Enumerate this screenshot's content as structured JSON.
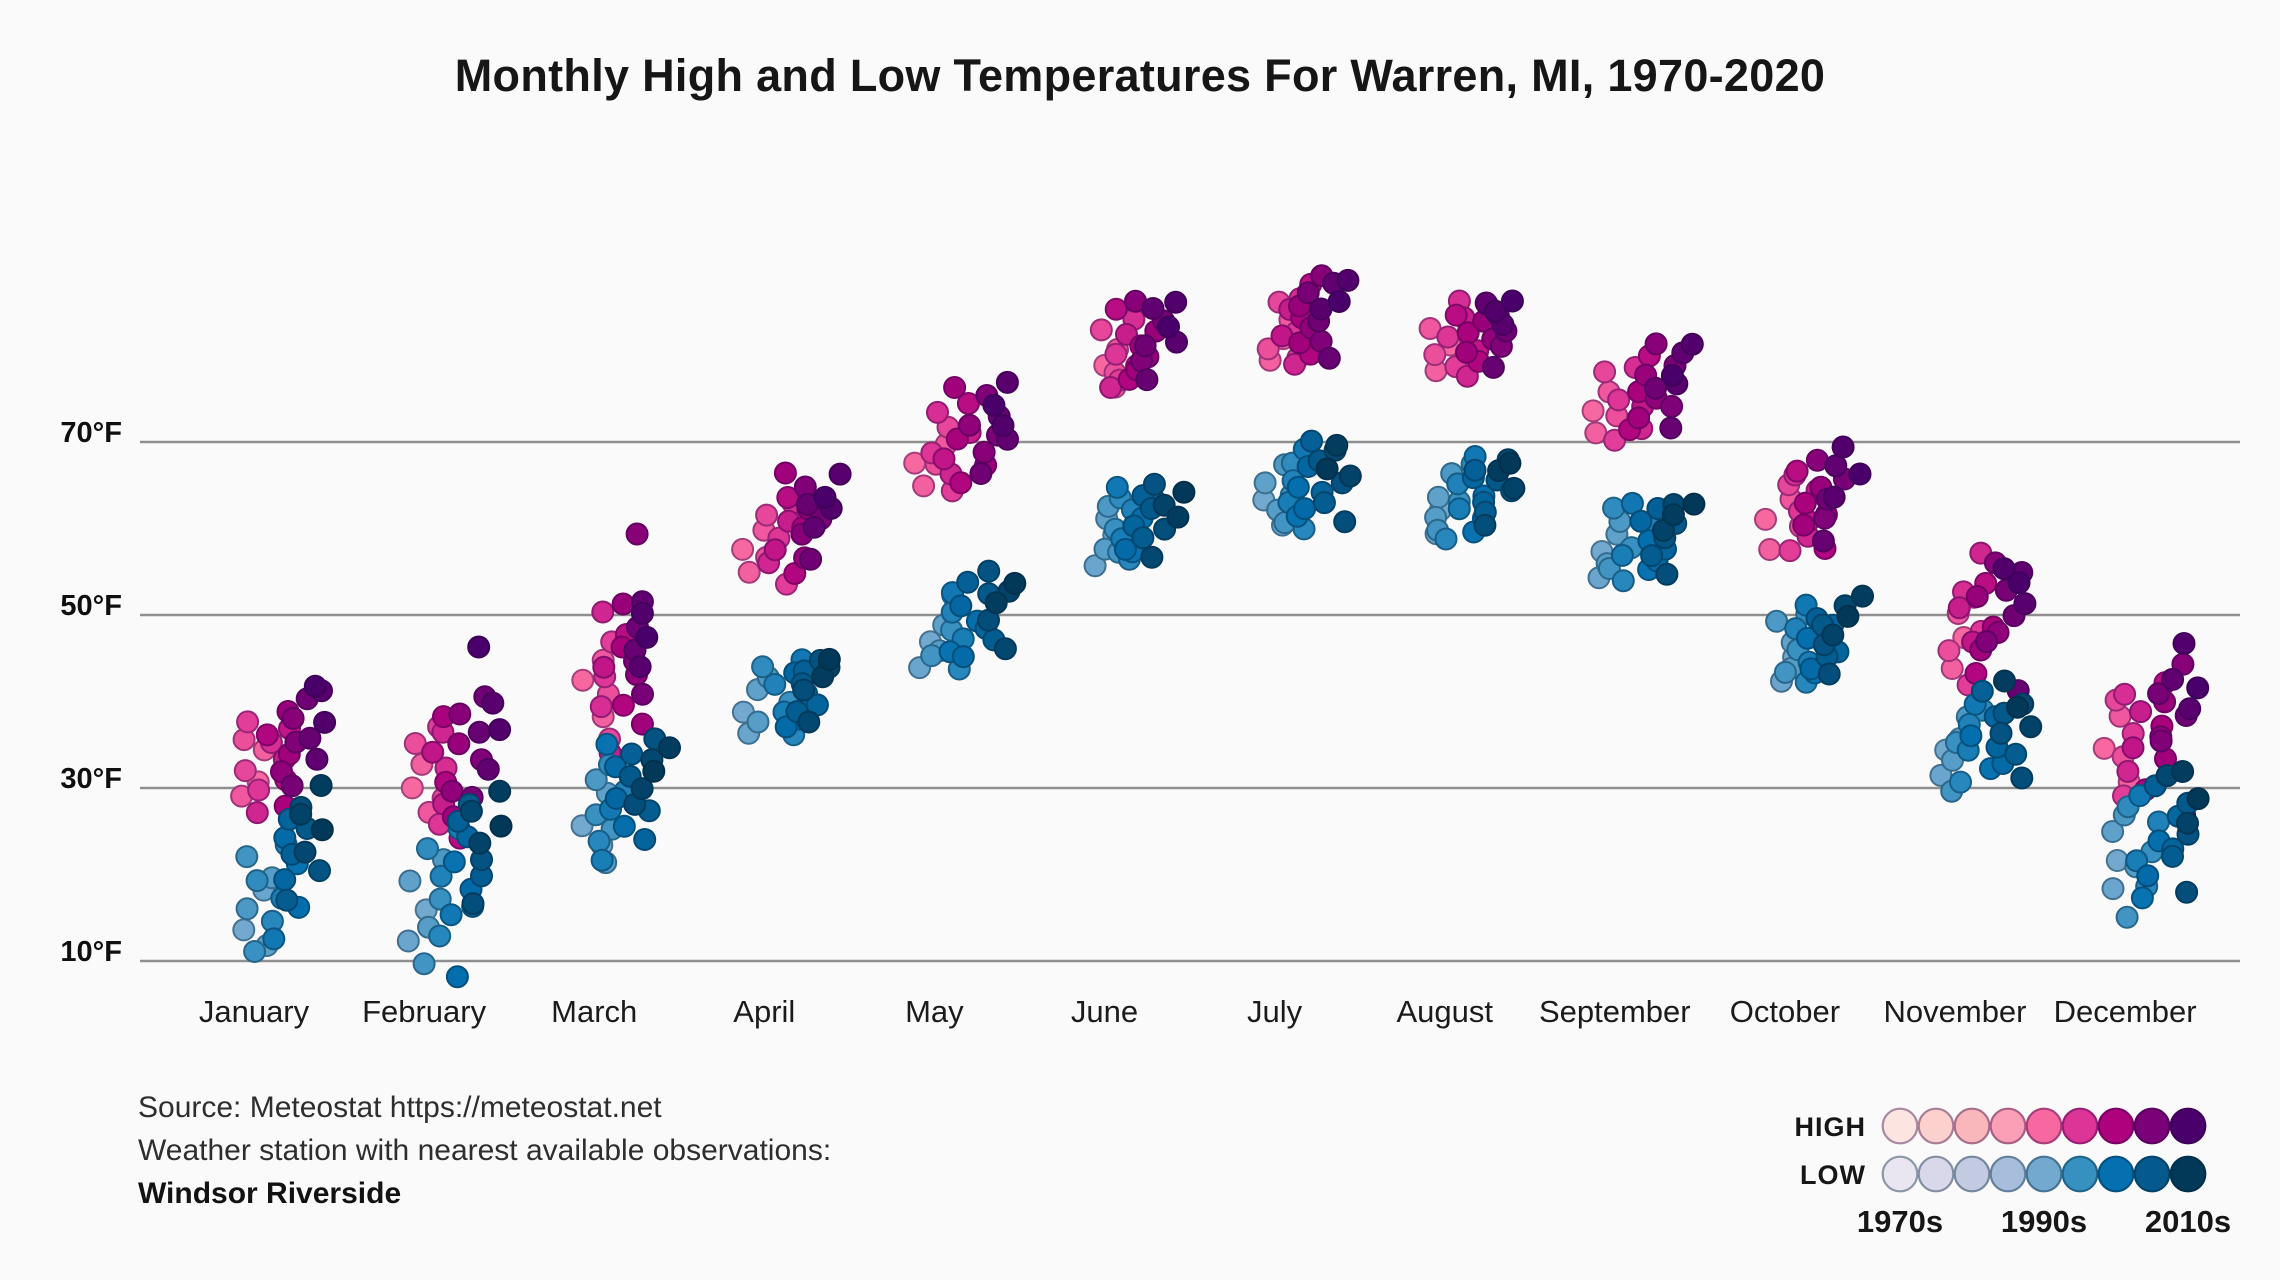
{
  "title": "Monthly High and Low Temperatures For Warren, MI, 1970-2020",
  "source": {
    "line1": "Source: Meteostat https://meteostat.net",
    "line2": "Weather station with nearest available observations:",
    "line3": "Windsor Riverside"
  },
  "legend": {
    "high_label": "HIGH",
    "low_label": "LOW",
    "decade_labels": [
      "1970s",
      "1990s",
      "2010s"
    ],
    "swatch_count": 9
  },
  "colors": {
    "background": "#fbfafb",
    "grid": "#8f8f8f",
    "text": "#1b1b1b",
    "high_palette": [
      "#fce5e1",
      "#fbd0cd",
      "#fab7bb",
      "#fa9fb5",
      "#f768a1",
      "#dd3497",
      "#ae017e",
      "#7a0177",
      "#49006a"
    ],
    "low_palette": [
      "#e9e6f2",
      "#d9d8ea",
      "#c3cbe2",
      "#a6bddb",
      "#74a9cf",
      "#3690c0",
      "#0570b0",
      "#045a8d",
      "#023858"
    ]
  },
  "y_axis": {
    "tick_labels": [
      "70°F",
      "50°F",
      "30°F",
      "10°F"
    ],
    "tick_values": [
      70,
      50,
      30,
      10
    ]
  },
  "months": [
    "January",
    "February",
    "March",
    "April",
    "May",
    "June",
    "July",
    "August",
    "September",
    "October",
    "November",
    "December"
  ],
  "chart_data": {
    "type": "scatter",
    "title": "Monthly High and Low Temperatures For Warren, MI, 1970-2020",
    "x_categories": [
      "January",
      "February",
      "March",
      "April",
      "May",
      "June",
      "July",
      "August",
      "September",
      "October",
      "November",
      "December"
    ],
    "y_unit": "°F",
    "y_ticks": [
      10,
      30,
      50,
      70
    ],
    "ylim": [
      2,
      95
    ],
    "grid": true,
    "legend_position": "bottom-right",
    "point_years_start": 1995,
    "color_year_domain": [
      1970,
      2020
    ],
    "color_encoding": "decade (1970s light to 2010s dark)",
    "series": [
      {
        "name": "HIGH",
        "by_month": {
          "January": [
            31,
            34,
            29,
            36,
            32,
            38,
            30,
            35,
            27,
            33,
            37,
            31,
            36,
            28,
            34,
            39,
            32,
            38,
            35,
            30,
            40,
            36,
            33,
            41,
            38,
            42
          ],
          "February": [
            30,
            33,
            27,
            35,
            29,
            37,
            26,
            32,
            36,
            28,
            34,
            24,
            31,
            38,
            27,
            35,
            30,
            39,
            33,
            29,
            41,
            36,
            32,
            40,
            37,
            46
          ],
          "March": [
            42,
            38,
            45,
            41,
            36,
            47,
            43,
            39,
            50,
            34,
            44,
            48,
            40,
            46,
            37,
            51,
            43,
            59,
            45,
            41,
            49,
            46,
            52,
            44,
            50,
            47
          ],
          "April": [
            58,
            55,
            60,
            57,
            62,
            54,
            59,
            63,
            56,
            61,
            58,
            64,
            55,
            60,
            66,
            57,
            62,
            59,
            65,
            61,
            56,
            63,
            60,
            66,
            62,
            64
          ],
          "May": [
            68,
            65,
            70,
            67,
            72,
            64,
            69,
            73,
            66,
            71,
            68,
            74,
            65,
            70,
            76,
            67,
            72,
            69,
            75,
            71,
            66,
            73,
            70,
            77,
            72,
            74
          ],
          "June": [
            79,
            76,
            81,
            78,
            83,
            77,
            80,
            84,
            76,
            82,
            79,
            85,
            77,
            81,
            78,
            83,
            80,
            86,
            79,
            84,
            81,
            77,
            85,
            82,
            86,
            83
          ],
          "July": [
            82,
            79,
            84,
            81,
            86,
            80,
            83,
            87,
            79,
            85,
            82,
            88,
            80,
            84,
            81,
            86,
            83,
            89,
            82,
            87,
            84,
            80,
            88,
            85,
            89,
            86
          ],
          "August": [
            81,
            78,
            83,
            80,
            85,
            79,
            82,
            86,
            78,
            84,
            81,
            85,
            79,
            83,
            80,
            84,
            82,
            86,
            81,
            85,
            83,
            79,
            86,
            84,
            85,
            86
          ],
          "September": [
            74,
            71,
            76,
            73,
            78,
            70,
            75,
            79,
            72,
            77,
            74,
            80,
            71,
            76,
            73,
            78,
            75,
            81,
            74,
            79,
            76,
            72,
            80,
            77,
            81,
            78
          ],
          "October": [
            61,
            58,
            63,
            60,
            65,
            57,
            62,
            66,
            59,
            64,
            61,
            67,
            58,
            63,
            60,
            65,
            62,
            68,
            61,
            66,
            63,
            59,
            67,
            64,
            69,
            66
          ],
          "November": [
            47,
            44,
            50,
            46,
            52,
            42,
            48,
            53,
            57,
            51,
            47,
            54,
            43,
            49,
            46,
            52,
            48,
            56,
            47,
            53,
            50,
            41,
            55,
            51,
            55,
            54
          ],
          "December": [
            35,
            31,
            38,
            34,
            40,
            29,
            36,
            41,
            32,
            39,
            35,
            42,
            30,
            37,
            33,
            40,
            36,
            44,
            35,
            41,
            38,
            27,
            43,
            39,
            47,
            42
          ]
        }
      },
      {
        "name": "LOW",
        "by_month": {
          "January": [
            14,
            18,
            12,
            20,
            16,
            22,
            11,
            19,
            15,
            23,
            17,
            13,
            21,
            16,
            24,
            19,
            26,
            22,
            17,
            25,
            20,
            28,
            23,
            27,
            30,
            25
          ],
          "February": [
            16,
            12,
            19,
            14,
            22,
            10,
            17,
            23,
            13,
            20,
            25,
            15,
            21,
            8,
            18,
            24,
            16,
            26,
            20,
            28,
            22,
            17,
            27,
            24,
            30,
            26
          ],
          "March": [
            26,
            23,
            29,
            21,
            31,
            25,
            27,
            33,
            24,
            30,
            22,
            28,
            35,
            26,
            32,
            29,
            24,
            34,
            27,
            31,
            36,
            28,
            33,
            30,
            35,
            32
          ],
          "April": [
            39,
            36,
            41,
            38,
            43,
            37,
            40,
            44,
            36,
            42,
            39,
            45,
            38,
            41,
            37,
            43,
            40,
            44,
            39,
            42,
            45,
            41,
            38,
            44,
            43,
            45
          ],
          "May": [
            47,
            44,
            49,
            46,
            51,
            45,
            48,
            52,
            44,
            50,
            47,
            53,
            46,
            49,
            45,
            51,
            48,
            54,
            47,
            52,
            55,
            49,
            46,
            53,
            51,
            54
          ],
          "June": [
            59,
            56,
            61,
            58,
            63,
            57,
            60,
            64,
            56,
            62,
            59,
            65,
            57,
            61,
            58,
            63,
            60,
            64,
            59,
            62,
            65,
            60,
            57,
            63,
            61,
            64
          ],
          "July": [
            63,
            60,
            65,
            62,
            67,
            61,
            64,
            68,
            60,
            66,
            63,
            69,
            61,
            65,
            62,
            67,
            64,
            70,
            63,
            68,
            65,
            61,
            69,
            66,
            70,
            67
          ],
          "August": [
            62,
            59,
            64,
            61,
            66,
            60,
            63,
            67,
            59,
            65,
            62,
            68,
            60,
            64,
            61,
            66,
            63,
            67,
            62,
            66,
            64,
            60,
            68,
            65,
            67,
            68
          ],
          "September": [
            57,
            54,
            59,
            56,
            61,
            55,
            58,
            62,
            54,
            60,
            57,
            63,
            55,
            59,
            56,
            61,
            58,
            62,
            57,
            61,
            59,
            55,
            63,
            60,
            62,
            63
          ],
          "October": [
            45,
            42,
            47,
            44,
            49,
            43,
            46,
            50,
            42,
            48,
            45,
            51,
            43,
            47,
            44,
            49,
            46,
            50,
            45,
            49,
            47,
            43,
            51,
            48,
            52,
            50
          ],
          "November": [
            34,
            31,
            36,
            33,
            38,
            30,
            35,
            39,
            31,
            37,
            34,
            40,
            32,
            36,
            33,
            38,
            35,
            41,
            34,
            39,
            36,
            31,
            40,
            37,
            42,
            39
          ],
          "December": [
            22,
            18,
            25,
            21,
            27,
            15,
            23,
            28,
            19,
            26,
            22,
            29,
            17,
            24,
            20,
            27,
            23,
            30,
            22,
            28,
            25,
            18,
            31,
            26,
            32,
            29
          ]
        }
      }
    ]
  }
}
